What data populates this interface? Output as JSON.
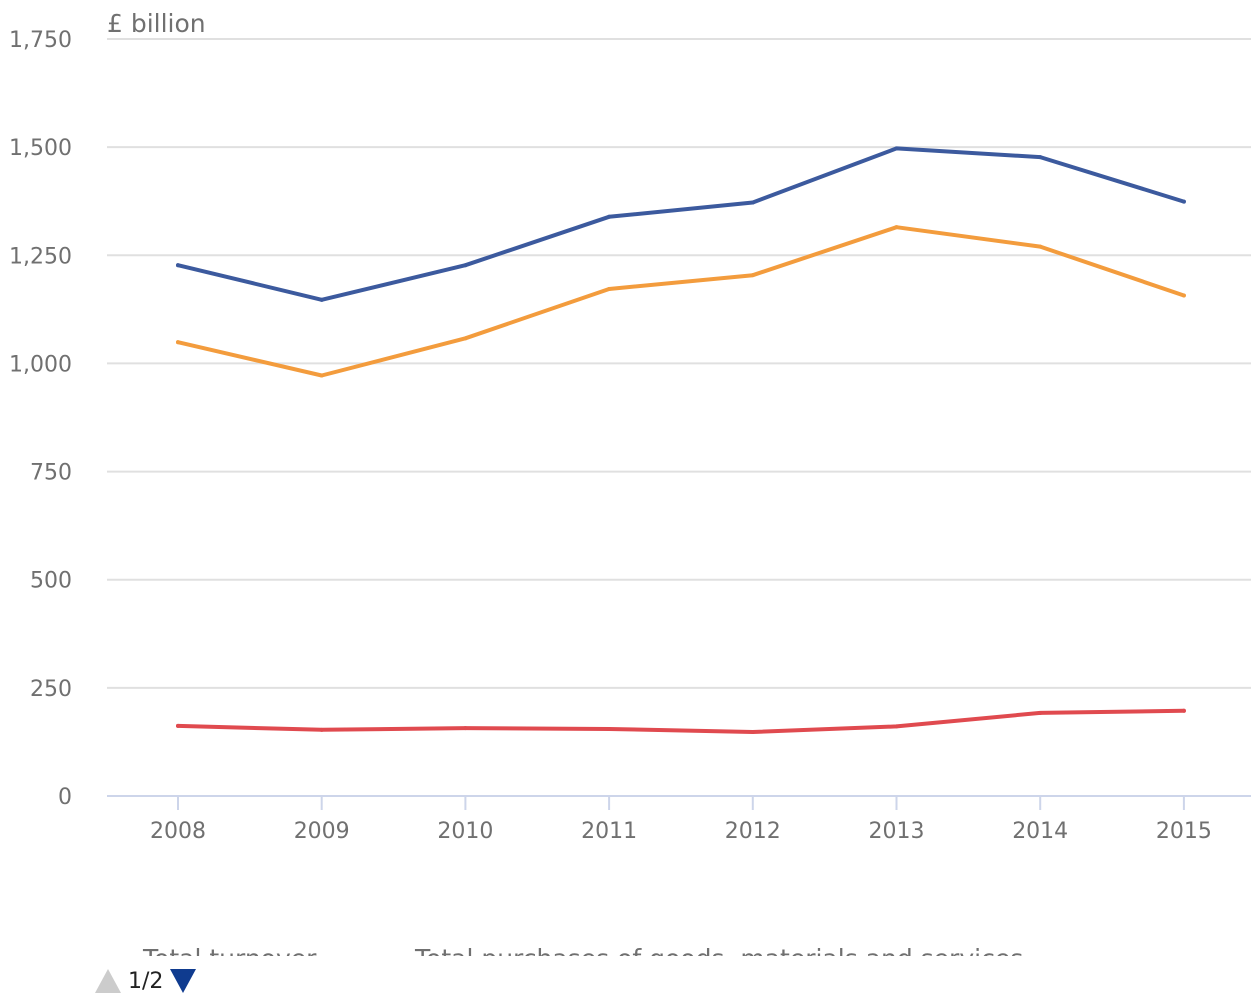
{
  "chart_data": {
    "type": "line",
    "unit_label": "£ billion",
    "categories": [
      "2008",
      "2009",
      "2010",
      "2011",
      "2012",
      "2013",
      "2014",
      "2015"
    ],
    "ylim": [
      0,
      1750
    ],
    "yticks": [
      0,
      250,
      500,
      750,
      1000,
      1250,
      1500,
      1750
    ],
    "ytick_labels": [
      "0",
      "250",
      "500",
      "750",
      "1,000",
      "1,250",
      "1,500",
      "1,750"
    ],
    "grid": true,
    "legend_position": "bottom",
    "series": [
      {
        "name": "Total turnover",
        "color": "#3c5a9e",
        "values": [
          1227,
          1147,
          1227,
          1339,
          1372,
          1497,
          1477,
          1374
        ]
      },
      {
        "name": "Total purchases of goods, materials and services",
        "color": "#f39c3d",
        "values": [
          1049,
          972,
          1058,
          1172,
          1204,
          1315,
          1270,
          1157
        ]
      },
      {
        "color": "#e04a4f",
        "values": [
          162,
          153,
          157,
          155,
          148,
          161,
          192,
          197
        ]
      }
    ]
  },
  "pager": {
    "text": "1/2"
  },
  "colors": {
    "grid": "#e0e0e0",
    "axis": "#cdd5ea",
    "text": "#707070"
  }
}
